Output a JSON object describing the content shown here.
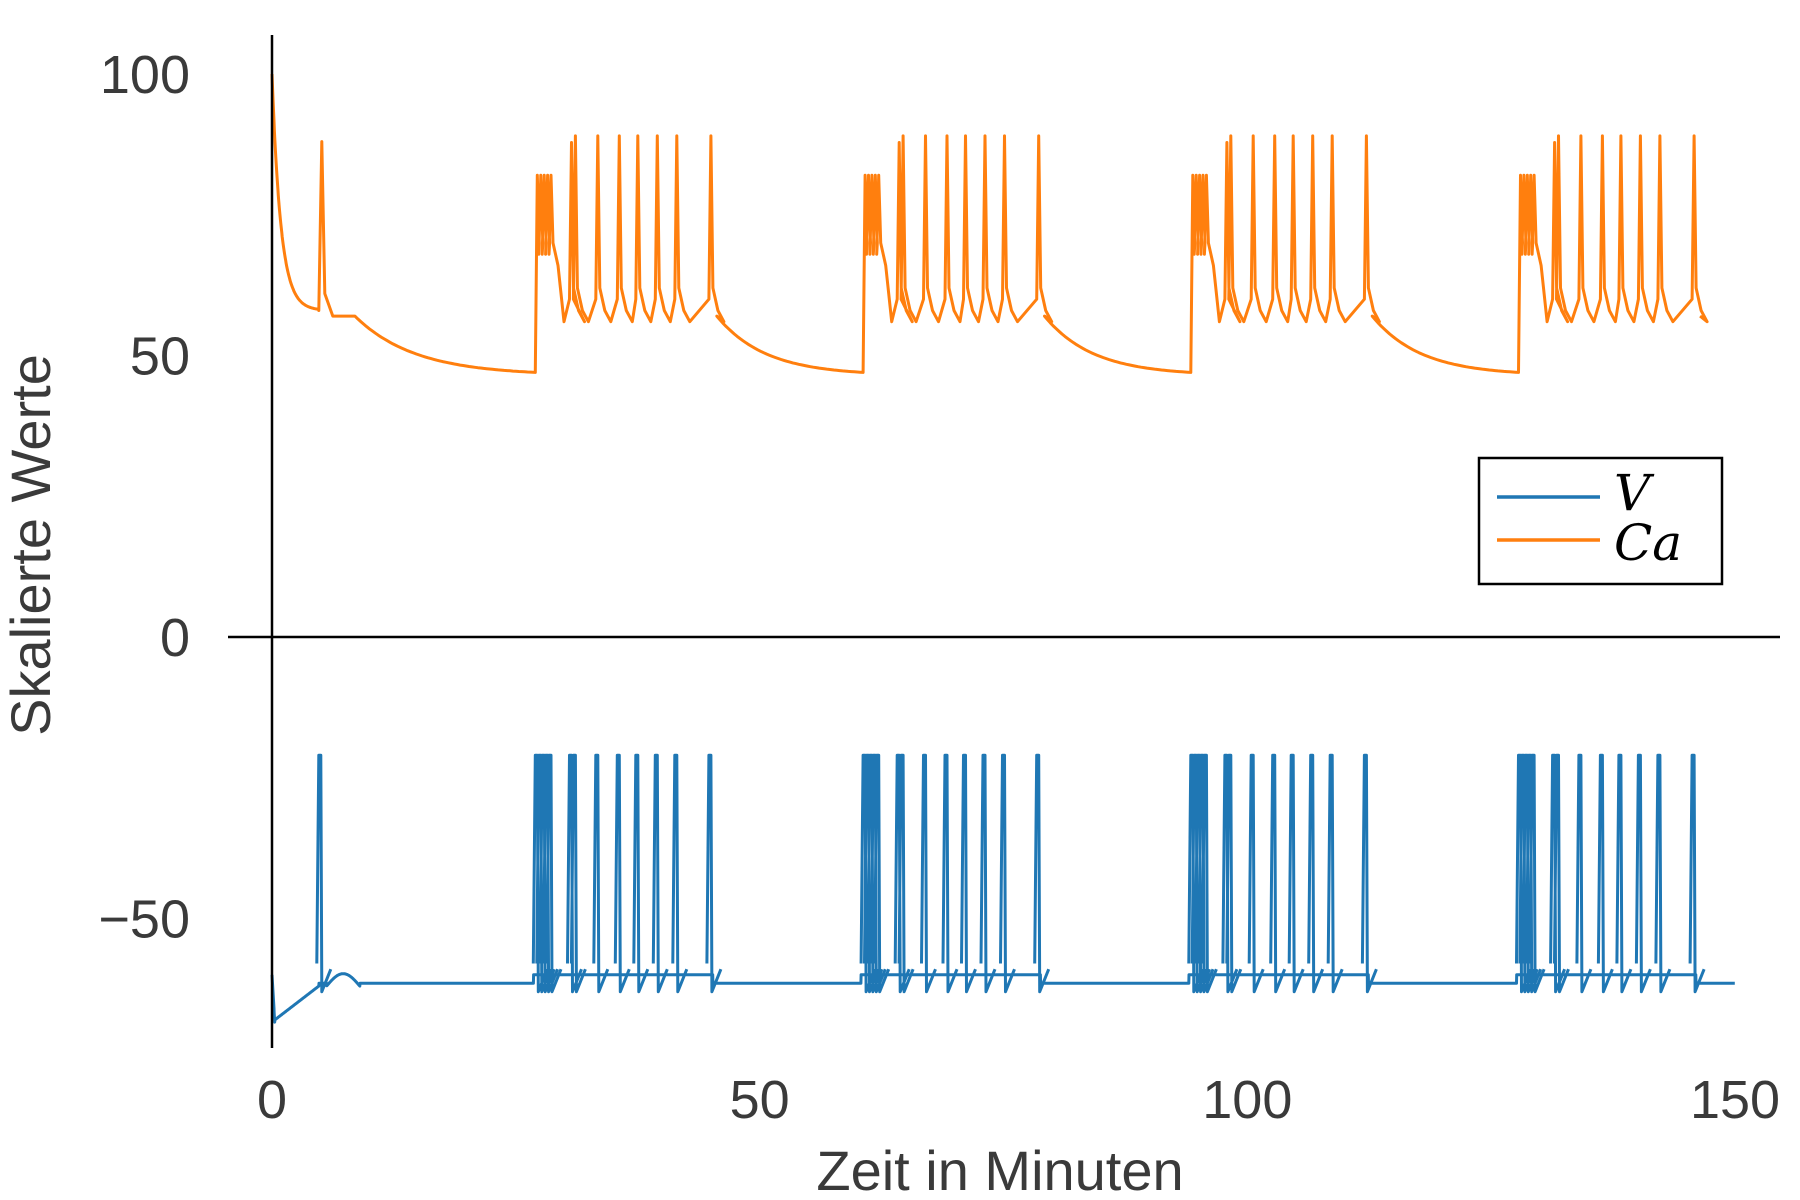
{
  "chart_data": {
    "type": "line",
    "xlabel": "Zeit in Minuten",
    "ylabel": "Skalierte Werte",
    "xlim": [
      0,
      150
    ],
    "ylim": [
      -72,
      105
    ],
    "xticks": [
      0,
      50,
      100,
      150
    ],
    "xtick_labels": [
      "0",
      "50",
      "100",
      "150"
    ],
    "yticks": [
      -50,
      0,
      50,
      100
    ],
    "ytick_labels": [
      "−50",
      "0",
      "50",
      "100"
    ],
    "grid": false,
    "legend_position": "right",
    "colors": {
      "V": "#1f77b4",
      "Ca": "#ff7f0e"
    },
    "period": 33.6,
    "series": [
      {
        "name": "V",
        "baseline": -61.5,
        "spike_peak": -21,
        "spike_trough": -63,
        "first_spike_x": 4.8,
        "burst_start_x": [
          27.0,
          60.6,
          94.2,
          127.8
        ],
        "burst_spikes_x": [
          0,
          0.35,
          0.7,
          1.05,
          1.4,
          3.5,
          3.9,
          6.2,
          8.4,
          10.3,
          12.3,
          14.3,
          17.8
        ],
        "burst_end_x": [
          44.8,
          78.4,
          112.0,
          145.6
        ]
      },
      {
        "name": "Ca",
        "start_value": 100,
        "decay_to": 58,
        "spike_peak_range": [
          82,
          89
        ],
        "trough_level": 56,
        "min_before_burst": 47,
        "first_spike_x": 4.8,
        "burst_start_x": [
          27.0,
          60.6,
          94.2,
          127.8
        ],
        "burst_end_x": [
          44.8,
          78.4,
          112.0,
          145.6
        ]
      }
    ],
    "annotations": [
      "y = 0 reference line"
    ]
  }
}
